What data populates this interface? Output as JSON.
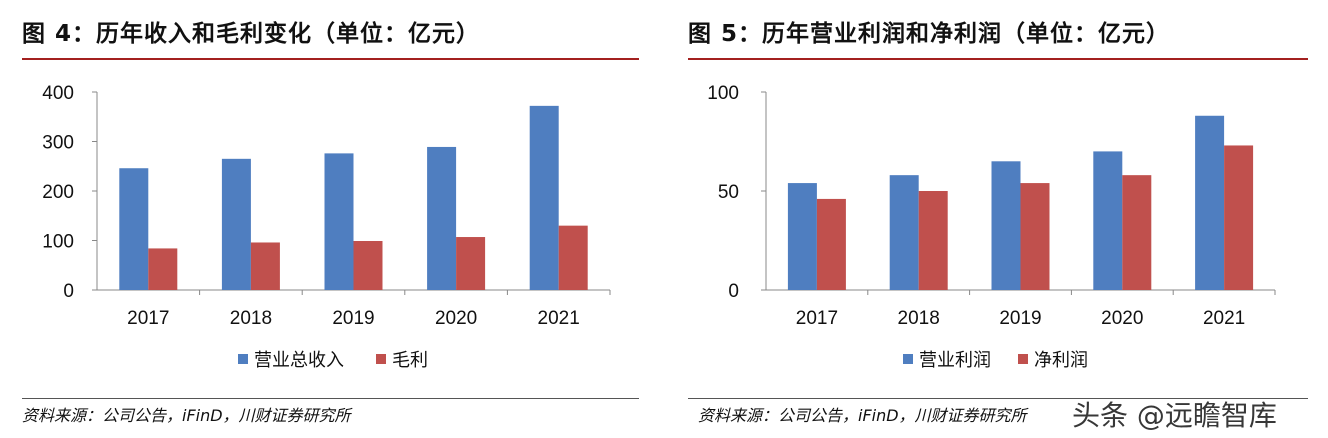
{
  "figures": [
    {
      "title": "图 4：历年收入和毛利变化（单位：亿元）",
      "source": "资料来源：公司公告，iFinD，川财证券研究所"
    },
    {
      "title": "图 5：历年营业利润和净利润（单位：亿元）",
      "source": "资料来源：公司公告，iFinD，川财证券研究所"
    }
  ],
  "watermark": "头条 @远瞻智库",
  "colors": {
    "blue": "#4f7ec0",
    "red": "#c0504d",
    "accent": "#a3201f"
  },
  "chart_data": [
    {
      "type": "bar",
      "title": "图 4：历年收入和毛利变化（单位：亿元）",
      "categories": [
        "2017",
        "2018",
        "2019",
        "2020",
        "2021"
      ],
      "series": [
        {
          "name": "营业总收入",
          "values": [
            246,
            265,
            276,
            289,
            372
          ]
        },
        {
          "name": "毛利",
          "values": [
            84,
            96,
            99,
            107,
            130
          ]
        }
      ],
      "ylim": [
        0,
        400
      ],
      "yticks": [
        0,
        100,
        200,
        300,
        400
      ],
      "grid": false,
      "legend": "bottom"
    },
    {
      "type": "bar",
      "title": "图 5：历年营业利润和净利润（单位：亿元）",
      "categories": [
        "2017",
        "2018",
        "2019",
        "2020",
        "2021"
      ],
      "series": [
        {
          "name": "营业利润",
          "values": [
            54,
            58,
            65,
            70,
            88
          ]
        },
        {
          "name": "净利润",
          "values": [
            46,
            50,
            54,
            58,
            73
          ]
        }
      ],
      "ylim": [
        0,
        100
      ],
      "yticks": [
        0,
        50,
        100
      ],
      "grid": false,
      "legend": "bottom"
    }
  ]
}
